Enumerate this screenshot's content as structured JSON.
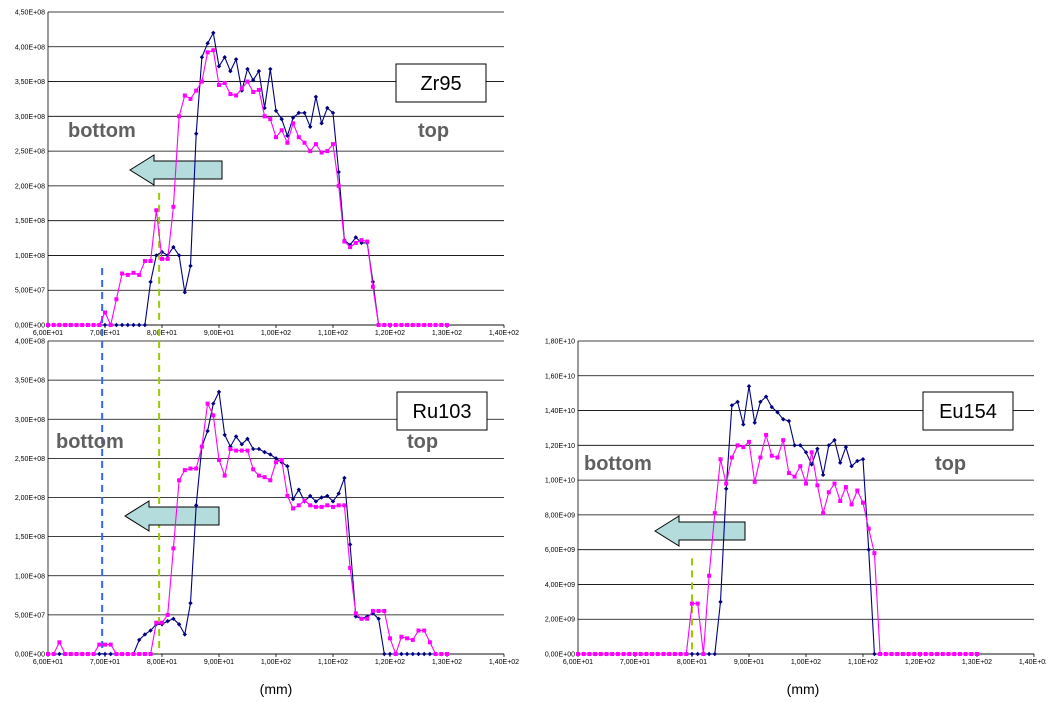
{
  "colors": {
    "series_blue": "#000080",
    "series_magenta": "#ff00ff",
    "arrow_fill": "#b4dcdc",
    "arrow_stroke": "#000000",
    "dashed_blue": "#3366ff",
    "dashed_green": "#99cc00",
    "grid": "#000000"
  },
  "chart_data": [
    {
      "type": "line",
      "id": "zr95",
      "isotope_label": "Zr95",
      "left_label": "bottom",
      "right_label": "top",
      "unit_label": "",
      "xlim": [
        60,
        140
      ],
      "ylim": [
        0,
        450000000
      ],
      "x_ticks": [
        "6,00E+01",
        "7,00E+01",
        "8,00E+01",
        "9,00E+01",
        "1,00E+02",
        "1,10E+02",
        "1,20E+02",
        "1,30E+02",
        "1,40E+02"
      ],
      "y_ticks": [
        "0,00E+00",
        "5,00E+07",
        "1,00E+08",
        "1,50E+08",
        "2,00E+08",
        "2,50E+08",
        "3,00E+08",
        "3,50E+08",
        "4,00E+08",
        "4,50E+08"
      ],
      "dashed_lines": [
        {
          "x": 69.5,
          "y_top": 82000000,
          "color": "blue"
        },
        {
          "x": 79.5,
          "y_top": 190000000,
          "color": "green"
        }
      ],
      "series": [
        {
          "color": "blue",
          "marker": "diamond",
          "x": [
            60,
            61,
            62,
            63,
            64,
            65,
            66,
            67,
            68,
            69,
            70,
            71,
            72,
            73,
            74,
            75,
            76,
            77,
            78,
            79,
            80,
            81,
            82,
            83,
            84,
            85,
            86,
            87,
            88,
            89,
            90,
            91,
            92,
            93,
            94,
            95,
            96,
            97,
            98,
            99,
            100,
            101,
            102,
            103,
            104,
            105,
            106,
            107,
            108,
            109,
            110,
            111,
            112,
            113,
            114,
            115,
            116,
            117,
            118,
            119,
            120,
            121,
            122,
            123,
            124,
            125,
            126,
            127,
            128,
            129,
            130
          ],
          "y": [
            0,
            0,
            0,
            0,
            0,
            0,
            0,
            0,
            0,
            0,
            0,
            0,
            0,
            0,
            0,
            0,
            0,
            0,
            62000000,
            100000000,
            105000000,
            100000000,
            112000000,
            100000000,
            47000000,
            85000000,
            275000000,
            385000000,
            405000000,
            420000000,
            372000000,
            385000000,
            365000000,
            382000000,
            337000000,
            368000000,
            352000000,
            365000000,
            312000000,
            368000000,
            308000000,
            296000000,
            272000000,
            298000000,
            305000000,
            305000000,
            285000000,
            328000000,
            290000000,
            312000000,
            305000000,
            220000000,
            122000000,
            115000000,
            126000000,
            118000000,
            118000000,
            62000000,
            0,
            0,
            0,
            0,
            0,
            0,
            0,
            0,
            0,
            0,
            0,
            0,
            0
          ]
        },
        {
          "color": "magenta",
          "marker": "square",
          "x": [
            60,
            61,
            62,
            63,
            64,
            65,
            66,
            67,
            68,
            69,
            70,
            71,
            72,
            73,
            74,
            75,
            76,
            77,
            78,
            79,
            80,
            81,
            82,
            83,
            84,
            85,
            86,
            87,
            88,
            89,
            90,
            91,
            92,
            93,
            94,
            95,
            96,
            97,
            98,
            99,
            100,
            101,
            102,
            103,
            104,
            105,
            106,
            107,
            108,
            109,
            110,
            111,
            112,
            113,
            114,
            115,
            116,
            117,
            118,
            119,
            120,
            121,
            122,
            123,
            124,
            125,
            126,
            127,
            128,
            129,
            130
          ],
          "y": [
            0,
            0,
            0,
            0,
            0,
            0,
            0,
            0,
            0,
            0,
            18000000,
            0,
            37000000,
            74000000,
            72000000,
            75000000,
            72000000,
            92000000,
            92000000,
            165000000,
            95000000,
            95000000,
            170000000,
            300000000,
            330000000,
            325000000,
            337000000,
            350000000,
            392000000,
            395000000,
            345000000,
            348000000,
            332000000,
            330000000,
            340000000,
            350000000,
            335000000,
            338000000,
            300000000,
            296000000,
            270000000,
            280000000,
            262000000,
            290000000,
            270000000,
            262000000,
            250000000,
            260000000,
            248000000,
            250000000,
            260000000,
            200000000,
            120000000,
            112000000,
            118000000,
            122000000,
            120000000,
            55000000,
            0,
            0,
            0,
            0,
            0,
            0,
            0,
            0,
            0,
            0,
            0,
            0,
            0
          ]
        }
      ]
    },
    {
      "type": "line",
      "id": "ru103",
      "isotope_label": "Ru103",
      "left_label": "bottom",
      "right_label": "top",
      "unit_label": "(mm)",
      "xlim": [
        60,
        140
      ],
      "ylim": [
        0,
        400000000
      ],
      "x_ticks": [
        "6,00E+01",
        "7,00E+01",
        "8,00E+01",
        "9,00E+01",
        "1,00E+02",
        "1,10E+02",
        "1,20E+02",
        "1,30E+02",
        "1,40E+02"
      ],
      "y_ticks": [
        "0,00E+00",
        "5,00E+07",
        "1,00E+08",
        "1,50E+08",
        "2,00E+08",
        "2,50E+08",
        "3,00E+08",
        "3,50E+08",
        "4,00E+08"
      ],
      "dashed_lines": [
        {
          "x": 69.5,
          "y_top": 400000000,
          "color": "blue"
        },
        {
          "x": 79.5,
          "y_top": 400000000,
          "color": "green"
        }
      ],
      "series": [
        {
          "color": "blue",
          "marker": "diamond",
          "x": [
            60,
            61,
            62,
            63,
            64,
            65,
            66,
            67,
            68,
            69,
            70,
            71,
            72,
            73,
            74,
            75,
            76,
            77,
            78,
            79,
            80,
            81,
            82,
            83,
            84,
            85,
            86,
            87,
            88,
            89,
            90,
            91,
            92,
            93,
            94,
            95,
            96,
            97,
            98,
            99,
            100,
            101,
            102,
            103,
            104,
            105,
            106,
            107,
            108,
            109,
            110,
            111,
            112,
            113,
            114,
            115,
            116,
            117,
            118,
            119,
            120,
            121,
            122,
            123,
            124,
            125,
            126,
            127,
            128,
            129,
            130
          ],
          "y": [
            0,
            0,
            0,
            0,
            0,
            0,
            0,
            0,
            0,
            0,
            0,
            0,
            0,
            0,
            0,
            0,
            18000000,
            25000000,
            30000000,
            38000000,
            38000000,
            42000000,
            45000000,
            38000000,
            25000000,
            65000000,
            190000000,
            265000000,
            285000000,
            320000000,
            335000000,
            280000000,
            265000000,
            278000000,
            268000000,
            275000000,
            262000000,
            262000000,
            258000000,
            255000000,
            250000000,
            245000000,
            240000000,
            198000000,
            210000000,
            195000000,
            202000000,
            195000000,
            200000000,
            202000000,
            195000000,
            205000000,
            225000000,
            140000000,
            48000000,
            45000000,
            48000000,
            52000000,
            45000000,
            0,
            0,
            0,
            0,
            0,
            0,
            0,
            0,
            0,
            0,
            0,
            0
          ]
        },
        {
          "color": "magenta",
          "marker": "square",
          "x": [
            60,
            61,
            62,
            63,
            64,
            65,
            66,
            67,
            68,
            69,
            70,
            71,
            72,
            73,
            74,
            75,
            76,
            77,
            78,
            79,
            80,
            81,
            82,
            83,
            84,
            85,
            86,
            87,
            88,
            89,
            90,
            91,
            92,
            93,
            94,
            95,
            96,
            97,
            98,
            99,
            100,
            101,
            102,
            103,
            104,
            105,
            106,
            107,
            108,
            109,
            110,
            111,
            112,
            113,
            114,
            115,
            116,
            117,
            118,
            119,
            120,
            121,
            122,
            123,
            124,
            125,
            126,
            127,
            128,
            129,
            130
          ],
          "y": [
            0,
            0,
            15000000,
            0,
            0,
            0,
            0,
            0,
            0,
            12000000,
            12000000,
            12000000,
            0,
            0,
            0,
            0,
            0,
            0,
            0,
            40000000,
            40000000,
            50000000,
            135000000,
            222000000,
            235000000,
            237000000,
            237000000,
            265000000,
            320000000,
            305000000,
            248000000,
            228000000,
            262000000,
            260000000,
            260000000,
            260000000,
            236000000,
            228000000,
            226000000,
            222000000,
            245000000,
            248000000,
            202000000,
            186000000,
            190000000,
            196000000,
            190000000,
            188000000,
            188000000,
            190000000,
            188000000,
            190000000,
            190000000,
            110000000,
            52000000,
            45000000,
            45000000,
            55000000,
            55000000,
            55000000,
            20000000,
            0,
            22000000,
            20000000,
            18000000,
            30000000,
            30000000,
            15000000,
            0,
            0,
            0
          ]
        }
      ]
    },
    {
      "type": "line",
      "id": "eu154",
      "isotope_label": "Eu154",
      "left_label": "bottom",
      "right_label": "top",
      "unit_label": "(mm)",
      "xlim": [
        60,
        140
      ],
      "ylim": [
        0,
        18000000000
      ],
      "x_ticks": [
        "6,00E+01",
        "7,00E+01",
        "8,00E+01",
        "9,00E+01",
        "1,00E+02",
        "1,10E+02",
        "1,20E+02",
        "1,30E+02",
        "1,40E+02"
      ],
      "y_ticks": [
        "0,00E+00",
        "2,00E+09",
        "4,00E+09",
        "6,00E+09",
        "8,00E+09",
        "1,00E+10",
        "1,20E+10",
        "1,40E+10",
        "1,60E+10",
        "1,80E+10"
      ],
      "dashed_lines": [
        {
          "x": 80,
          "y_top": 5500000000,
          "color": "green"
        }
      ],
      "series": [
        {
          "color": "blue",
          "marker": "diamond",
          "x": [
            60,
            61,
            62,
            63,
            64,
            65,
            66,
            67,
            68,
            69,
            70,
            71,
            72,
            73,
            74,
            75,
            76,
            77,
            78,
            79,
            80,
            81,
            82,
            83,
            84,
            85,
            86,
            87,
            88,
            89,
            90,
            91,
            92,
            93,
            94,
            95,
            96,
            97,
            98,
            99,
            100,
            101,
            102,
            103,
            104,
            105,
            106,
            107,
            108,
            109,
            110,
            111,
            112,
            113,
            114,
            115,
            116,
            117,
            118,
            119,
            120,
            121,
            122,
            123,
            124,
            125,
            126,
            127,
            128,
            129,
            130
          ],
          "y": [
            0,
            0,
            0,
            0,
            0,
            0,
            0,
            0,
            0,
            0,
            0,
            0,
            0,
            0,
            0,
            0,
            0,
            0,
            0,
            0,
            0,
            0,
            0,
            0,
            0,
            3000000000,
            9500000000,
            14300000000,
            14500000000,
            13200000000,
            15400000000,
            13300000000,
            14500000000,
            14800000000,
            14200000000,
            13900000000,
            13500000000,
            13400000000,
            12000000000,
            12000000000,
            11600000000,
            10900000000,
            11800000000,
            10300000000,
            12000000000,
            12300000000,
            11000000000,
            11900000000,
            10800000000,
            11100000000,
            11200000000,
            6000000000,
            0,
            0,
            0,
            0,
            0,
            0,
            0,
            0,
            0,
            0,
            0,
            0,
            0,
            0,
            0,
            0,
            0,
            0,
            0
          ]
        },
        {
          "color": "magenta",
          "marker": "square",
          "x": [
            60,
            61,
            62,
            63,
            64,
            65,
            66,
            67,
            68,
            69,
            70,
            71,
            72,
            73,
            74,
            75,
            76,
            77,
            78,
            79,
            80,
            81,
            82,
            83,
            84,
            85,
            86,
            87,
            88,
            89,
            90,
            91,
            92,
            93,
            94,
            95,
            96,
            97,
            98,
            99,
            100,
            101,
            102,
            103,
            104,
            105,
            106,
            107,
            108,
            109,
            110,
            111,
            112,
            113,
            114,
            115,
            116,
            117,
            118,
            119,
            120,
            121,
            122,
            123,
            124,
            125,
            126,
            127,
            128,
            129,
            130
          ],
          "y": [
            0,
            0,
            0,
            0,
            0,
            0,
            0,
            0,
            0,
            0,
            0,
            0,
            0,
            0,
            0,
            0,
            0,
            0,
            0,
            0,
            2900000000,
            2900000000,
            0,
            4500000000,
            8100000000,
            11200000000,
            9800000000,
            11300000000,
            12000000000,
            11900000000,
            12200000000,
            9900000000,
            11300000000,
            12600000000,
            11400000000,
            11300000000,
            12300000000,
            10400000000,
            10200000000,
            10800000000,
            9800000000,
            11600000000,
            9700000000,
            8100000000,
            9300000000,
            9800000000,
            8800000000,
            9600000000,
            8600000000,
            9400000000,
            8700000000,
            7200000000,
            5800000000,
            0,
            0,
            0,
            0,
            0,
            0,
            0,
            0,
            0,
            0,
            0,
            0,
            0,
            0,
            0,
            0,
            0,
            0
          ]
        }
      ]
    }
  ]
}
